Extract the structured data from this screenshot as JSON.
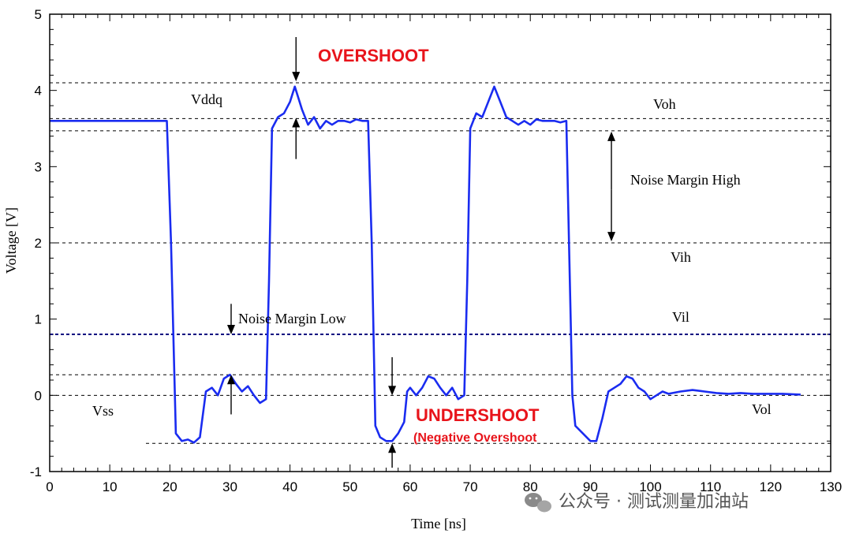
{
  "chart_data": {
    "type": "line",
    "xlabel": "Time [ns]",
    "ylabel": "Voltage [V]",
    "xlim": [
      0,
      130
    ],
    "ylim": [
      -1,
      5
    ],
    "x_ticks": [
      0,
      10,
      20,
      30,
      40,
      50,
      60,
      70,
      80,
      90,
      100,
      110,
      120,
      130
    ],
    "y_ticks": [
      -1,
      0,
      1,
      2,
      3,
      4,
      5
    ],
    "grid": false,
    "line_color": "#1a2cf0",
    "reference_color": "#000080",
    "series": [
      {
        "values": [
          [
            0,
            3.6
          ],
          [
            19.5,
            3.6
          ],
          [
            20.2,
            2.0
          ],
          [
            21,
            -0.5
          ],
          [
            22,
            -0.6
          ],
          [
            23,
            -0.58
          ],
          [
            24,
            -0.62
          ],
          [
            25,
            -0.55
          ],
          [
            26,
            0.05
          ],
          [
            27,
            0.1
          ],
          [
            28,
            0.0
          ],
          [
            29,
            0.22
          ],
          [
            30,
            0.27
          ],
          [
            31,
            0.15
          ],
          [
            32,
            0.05
          ],
          [
            33,
            0.12
          ],
          [
            34,
            0.0
          ],
          [
            35,
            -0.1
          ],
          [
            36,
            -0.05
          ],
          [
            36.5,
            1.5
          ],
          [
            37,
            3.5
          ],
          [
            38,
            3.65
          ],
          [
            39,
            3.7
          ],
          [
            40,
            3.85
          ],
          [
            40.8,
            4.05
          ],
          [
            42,
            3.75
          ],
          [
            43,
            3.55
          ],
          [
            44,
            3.65
          ],
          [
            45,
            3.5
          ],
          [
            46,
            3.6
          ],
          [
            47,
            3.55
          ],
          [
            48,
            3.6
          ],
          [
            49,
            3.6
          ],
          [
            50,
            3.58
          ],
          [
            51,
            3.62
          ],
          [
            52,
            3.6
          ],
          [
            53,
            3.6
          ],
          [
            53.6,
            2.0
          ],
          [
            54.2,
            -0.4
          ],
          [
            55,
            -0.55
          ],
          [
            56,
            -0.6
          ],
          [
            57,
            -0.6
          ],
          [
            58,
            -0.5
          ],
          [
            59,
            -0.35
          ],
          [
            59.5,
            0.05
          ],
          [
            60,
            0.1
          ],
          [
            61,
            0.0
          ],
          [
            62,
            0.1
          ],
          [
            63,
            0.25
          ],
          [
            64,
            0.22
          ],
          [
            65,
            0.1
          ],
          [
            66,
            0.0
          ],
          [
            67,
            0.1
          ],
          [
            68,
            -0.05
          ],
          [
            69,
            0.0
          ],
          [
            69.5,
            1.5
          ],
          [
            70,
            3.5
          ],
          [
            71,
            3.7
          ],
          [
            72,
            3.65
          ],
          [
            73,
            3.85
          ],
          [
            74,
            4.05
          ],
          [
            75,
            3.85
          ],
          [
            76,
            3.65
          ],
          [
            77,
            3.6
          ],
          [
            78,
            3.55
          ],
          [
            79,
            3.6
          ],
          [
            80,
            3.55
          ],
          [
            81,
            3.62
          ],
          [
            82,
            3.6
          ],
          [
            83,
            3.6
          ],
          [
            84,
            3.6
          ],
          [
            85,
            3.58
          ],
          [
            86,
            3.6
          ],
          [
            87,
            0.0
          ],
          [
            87.5,
            -0.4
          ],
          [
            90,
            -0.6
          ],
          [
            91,
            -0.6
          ],
          [
            92,
            -0.3
          ],
          [
            93,
            0.05
          ],
          [
            94,
            0.1
          ],
          [
            95,
            0.15
          ],
          [
            96,
            0.25
          ],
          [
            97,
            0.22
          ],
          [
            98,
            0.1
          ],
          [
            99,
            0.05
          ],
          [
            100,
            -0.05
          ],
          [
            101,
            0.0
          ],
          [
            102,
            0.05
          ],
          [
            103,
            0.02
          ],
          [
            105,
            0.05
          ],
          [
            107,
            0.07
          ],
          [
            109,
            0.05
          ],
          [
            111,
            0.03
          ],
          [
            113,
            0.02
          ],
          [
            115,
            0.03
          ],
          [
            117,
            0.02
          ],
          [
            120,
            0.02
          ],
          [
            122,
            0.02
          ],
          [
            125,
            0.01
          ]
        ]
      }
    ],
    "reference_lines": [
      {
        "y": 4.1,
        "label": "",
        "style": "dashed"
      },
      {
        "y": 3.63,
        "label": "Vddq",
        "style": "dashed"
      },
      {
        "y": 3.47,
        "label": "Voh",
        "style": "dashed"
      },
      {
        "y": 2.0,
        "label": "Vih",
        "style": "dashed"
      },
      {
        "y": 0.8,
        "label": "Vil",
        "style": "dashed-dense"
      },
      {
        "y": 0.27,
        "label": "",
        "style": "dashed"
      },
      {
        "y": 0.0,
        "label": "Vss",
        "style": "dashed"
      },
      {
        "y": -0.63,
        "label": "Vol",
        "style": "dashed"
      }
    ],
    "annotations": {
      "overshoot": "OVERSHOOT",
      "undershoot": "UNDERSHOOT",
      "negative_overshoot": "(Negative Overshoot",
      "noise_margin_high": "Noise Margin High",
      "noise_margin_low": "Noise Margin Low"
    }
  },
  "watermark": "公众号 · 测试测量加油站"
}
